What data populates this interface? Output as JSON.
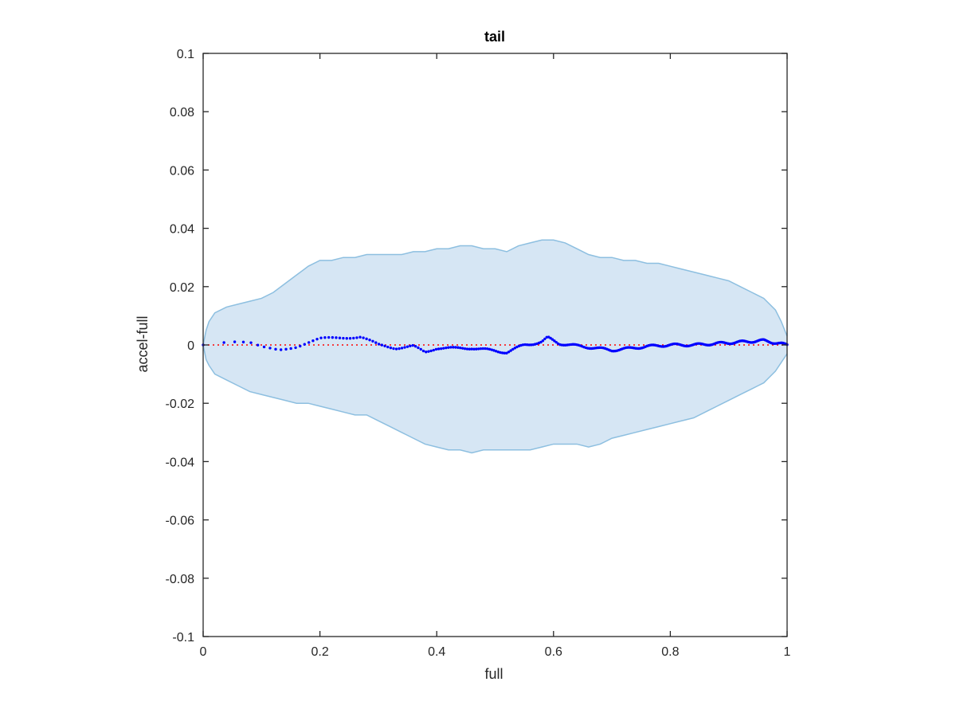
{
  "chart_data": {
    "type": "scatter",
    "title": "tail",
    "xlabel": "full",
    "ylabel": "accel-full",
    "xlim": [
      0,
      1
    ],
    "ylim": [
      -0.1,
      0.1
    ],
    "x_ticks": [
      0,
      0.2,
      0.4,
      0.6,
      0.8,
      1
    ],
    "x_tick_labels": [
      "0",
      "0.2",
      "0.4",
      "0.6",
      "0.8",
      "1"
    ],
    "y_ticks": [
      -0.1,
      -0.08,
      -0.06,
      -0.04,
      -0.02,
      0,
      0.02,
      0.04,
      0.06,
      0.08,
      0.1
    ],
    "y_tick_labels": [
      "-0.1",
      "-0.08",
      "-0.06",
      "-0.04",
      "-0.02",
      "0",
      "0.02",
      "0.04",
      "0.06",
      "0.08",
      "0.1"
    ],
    "grid": false,
    "colors": {
      "band_fill": "#d6e6f4",
      "band_edge": "#8dbfe0",
      "points": "#0000ff",
      "reference_line": "#ff0000",
      "axes": "#262626"
    },
    "band": {
      "x": [
        0,
        0.005,
        0.01,
        0.02,
        0.04,
        0.06,
        0.08,
        0.1,
        0.12,
        0.14,
        0.16,
        0.18,
        0.2,
        0.22,
        0.24,
        0.26,
        0.28,
        0.3,
        0.32,
        0.34,
        0.36,
        0.38,
        0.4,
        0.42,
        0.44,
        0.46,
        0.48,
        0.5,
        0.52,
        0.54,
        0.56,
        0.58,
        0.6,
        0.62,
        0.64,
        0.66,
        0.68,
        0.7,
        0.72,
        0.74,
        0.76,
        0.78,
        0.8,
        0.82,
        0.84,
        0.86,
        0.88,
        0.9,
        0.92,
        0.94,
        0.95,
        0.96,
        0.97,
        0.98,
        0.99,
        1.0
      ],
      "upper": [
        0.0,
        0.005,
        0.008,
        0.011,
        0.013,
        0.014,
        0.015,
        0.016,
        0.018,
        0.021,
        0.024,
        0.027,
        0.029,
        0.029,
        0.03,
        0.03,
        0.031,
        0.031,
        0.031,
        0.031,
        0.032,
        0.032,
        0.033,
        0.033,
        0.034,
        0.034,
        0.033,
        0.033,
        0.032,
        0.034,
        0.035,
        0.036,
        0.036,
        0.035,
        0.033,
        0.031,
        0.03,
        0.03,
        0.029,
        0.029,
        0.028,
        0.028,
        0.027,
        0.026,
        0.025,
        0.024,
        0.023,
        0.022,
        0.02,
        0.018,
        0.017,
        0.016,
        0.014,
        0.012,
        0.008,
        0.003
      ],
      "lower": [
        0.0,
        -0.005,
        -0.007,
        -0.01,
        -0.012,
        -0.014,
        -0.016,
        -0.017,
        -0.018,
        -0.019,
        -0.02,
        -0.02,
        -0.021,
        -0.022,
        -0.023,
        -0.024,
        -0.024,
        -0.026,
        -0.028,
        -0.03,
        -0.032,
        -0.034,
        -0.035,
        -0.036,
        -0.036,
        -0.037,
        -0.036,
        -0.036,
        -0.036,
        -0.036,
        -0.036,
        -0.035,
        -0.034,
        -0.034,
        -0.034,
        -0.035,
        -0.034,
        -0.032,
        -0.031,
        -0.03,
        -0.029,
        -0.028,
        -0.027,
        -0.026,
        -0.025,
        -0.023,
        -0.021,
        -0.019,
        -0.017,
        -0.015,
        -0.014,
        -0.013,
        -0.011,
        -0.009,
        -0.006,
        -0.003
      ]
    },
    "reference_y": 0,
    "series_profile": {
      "x": [
        0,
        0.02,
        0.05,
        0.08,
        0.1,
        0.13,
        0.16,
        0.2,
        0.23,
        0.27,
        0.3,
        0.33,
        0.36,
        0.38,
        0.4,
        0.43,
        0.46,
        0.49,
        0.52,
        0.55,
        0.58,
        0.59,
        0.61,
        0.64,
        0.67,
        0.7,
        0.73,
        0.76,
        0.8,
        0.84,
        0.88,
        0.92,
        0.96,
        1.0
      ],
      "y": [
        0.0,
        0.0005,
        0.0008,
        0.0005,
        -0.0008,
        -0.0015,
        -0.0005,
        0.002,
        0.0025,
        0.0028,
        0.0,
        -0.001,
        -0.0005,
        -0.0025,
        -0.001,
        -0.0012,
        -0.001,
        -0.0018,
        -0.0025,
        0.0,
        0.001,
        0.0025,
        0.0005,
        -0.0003,
        -0.001,
        -0.0018,
        -0.0012,
        -0.0005,
        0.0,
        0.0,
        0.0005,
        0.001,
        0.0015,
        0.0
      ]
    },
    "point_count": 260
  }
}
